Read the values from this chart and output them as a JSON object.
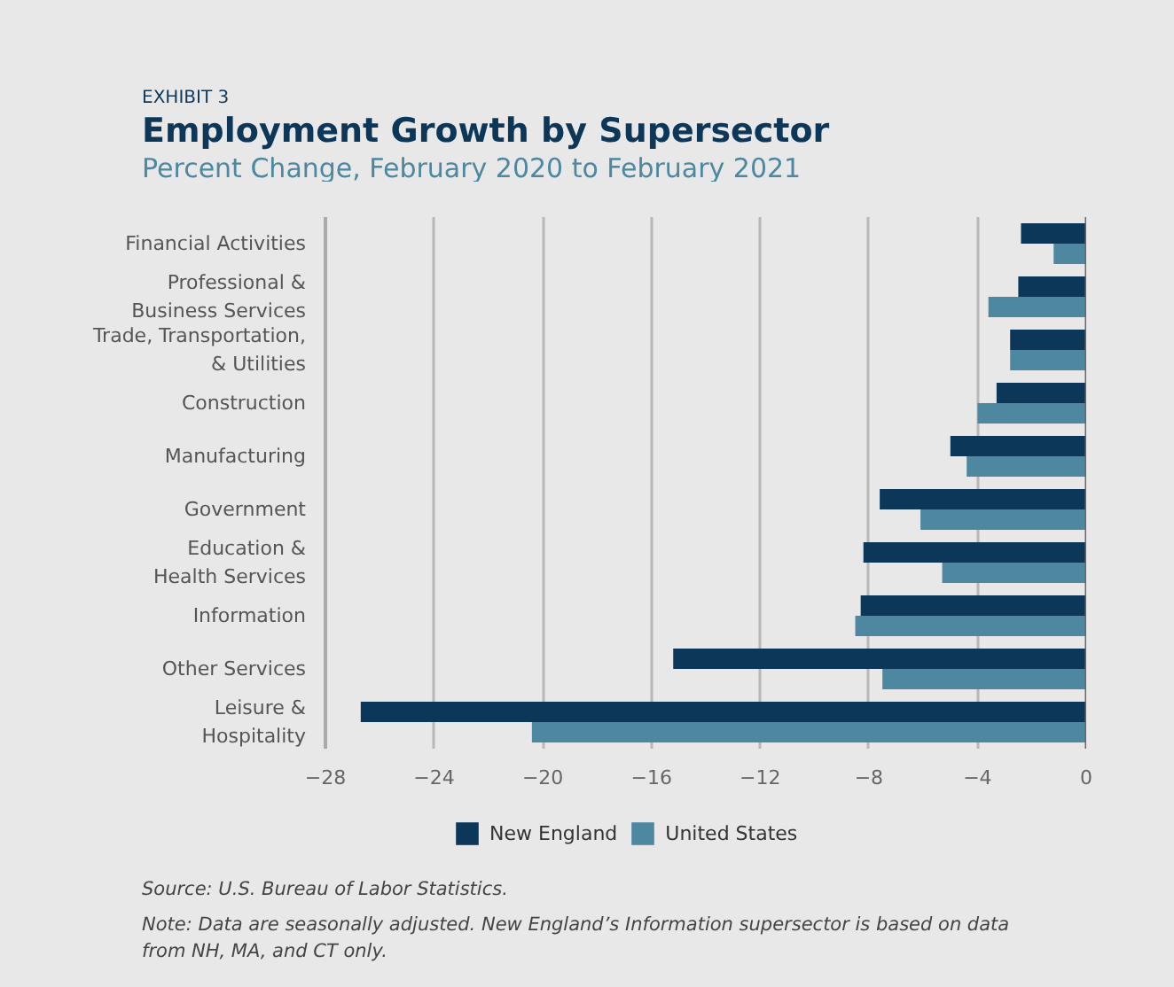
{
  "chart_data": {
    "type": "bar",
    "orientation": "horizontal",
    "title": "Employment Growth by Supersector",
    "subtitle": "Percent Change, February 2020 to February 2021",
    "categories": [
      "Financial Activities",
      "Professional &\nBusiness Services",
      "Trade, Transportation,\n& Utilities",
      "Construction",
      "Manufacturing",
      "Government",
      "Education &\nHealth Services",
      "Information",
      "Other Services",
      "Leisure &\nHospitality"
    ],
    "series": [
      {
        "name": "New England",
        "color": "#0d3759",
        "values": [
          -2.4,
          -2.5,
          -2.8,
          -3.3,
          -5.0,
          -7.6,
          -8.2,
          -8.3,
          -15.2,
          -26.7
        ]
      },
      {
        "name": "United States",
        "color": "#4d87a0",
        "values": [
          -1.2,
          -3.6,
          -2.8,
          -4.0,
          -4.4,
          -6.1,
          -5.3,
          -8.5,
          -7.5,
          -20.4
        ]
      }
    ],
    "xlim": [
      -28,
      0
    ],
    "xticks": [
      {
        "value": -28,
        "label": "−28"
      },
      {
        "value": -24,
        "label": "−24"
      },
      {
        "value": -20,
        "label": "−20"
      },
      {
        "value": -16,
        "label": "−16"
      },
      {
        "value": -12,
        "label": "−12"
      },
      {
        "value": -8,
        "label": "−8"
      },
      {
        "value": -4,
        "label": "−4"
      },
      0
    ],
    "grid": "x",
    "legend": "bottom left",
    "annotations": [
      "EXHIBIT 3",
      "Source: U.S. Bureau of Labor Statistics.",
      "Note: Data are seasonally adjusted. New England’s Information supersector is based on data from NH, MA, and CT only."
    ]
  }
}
